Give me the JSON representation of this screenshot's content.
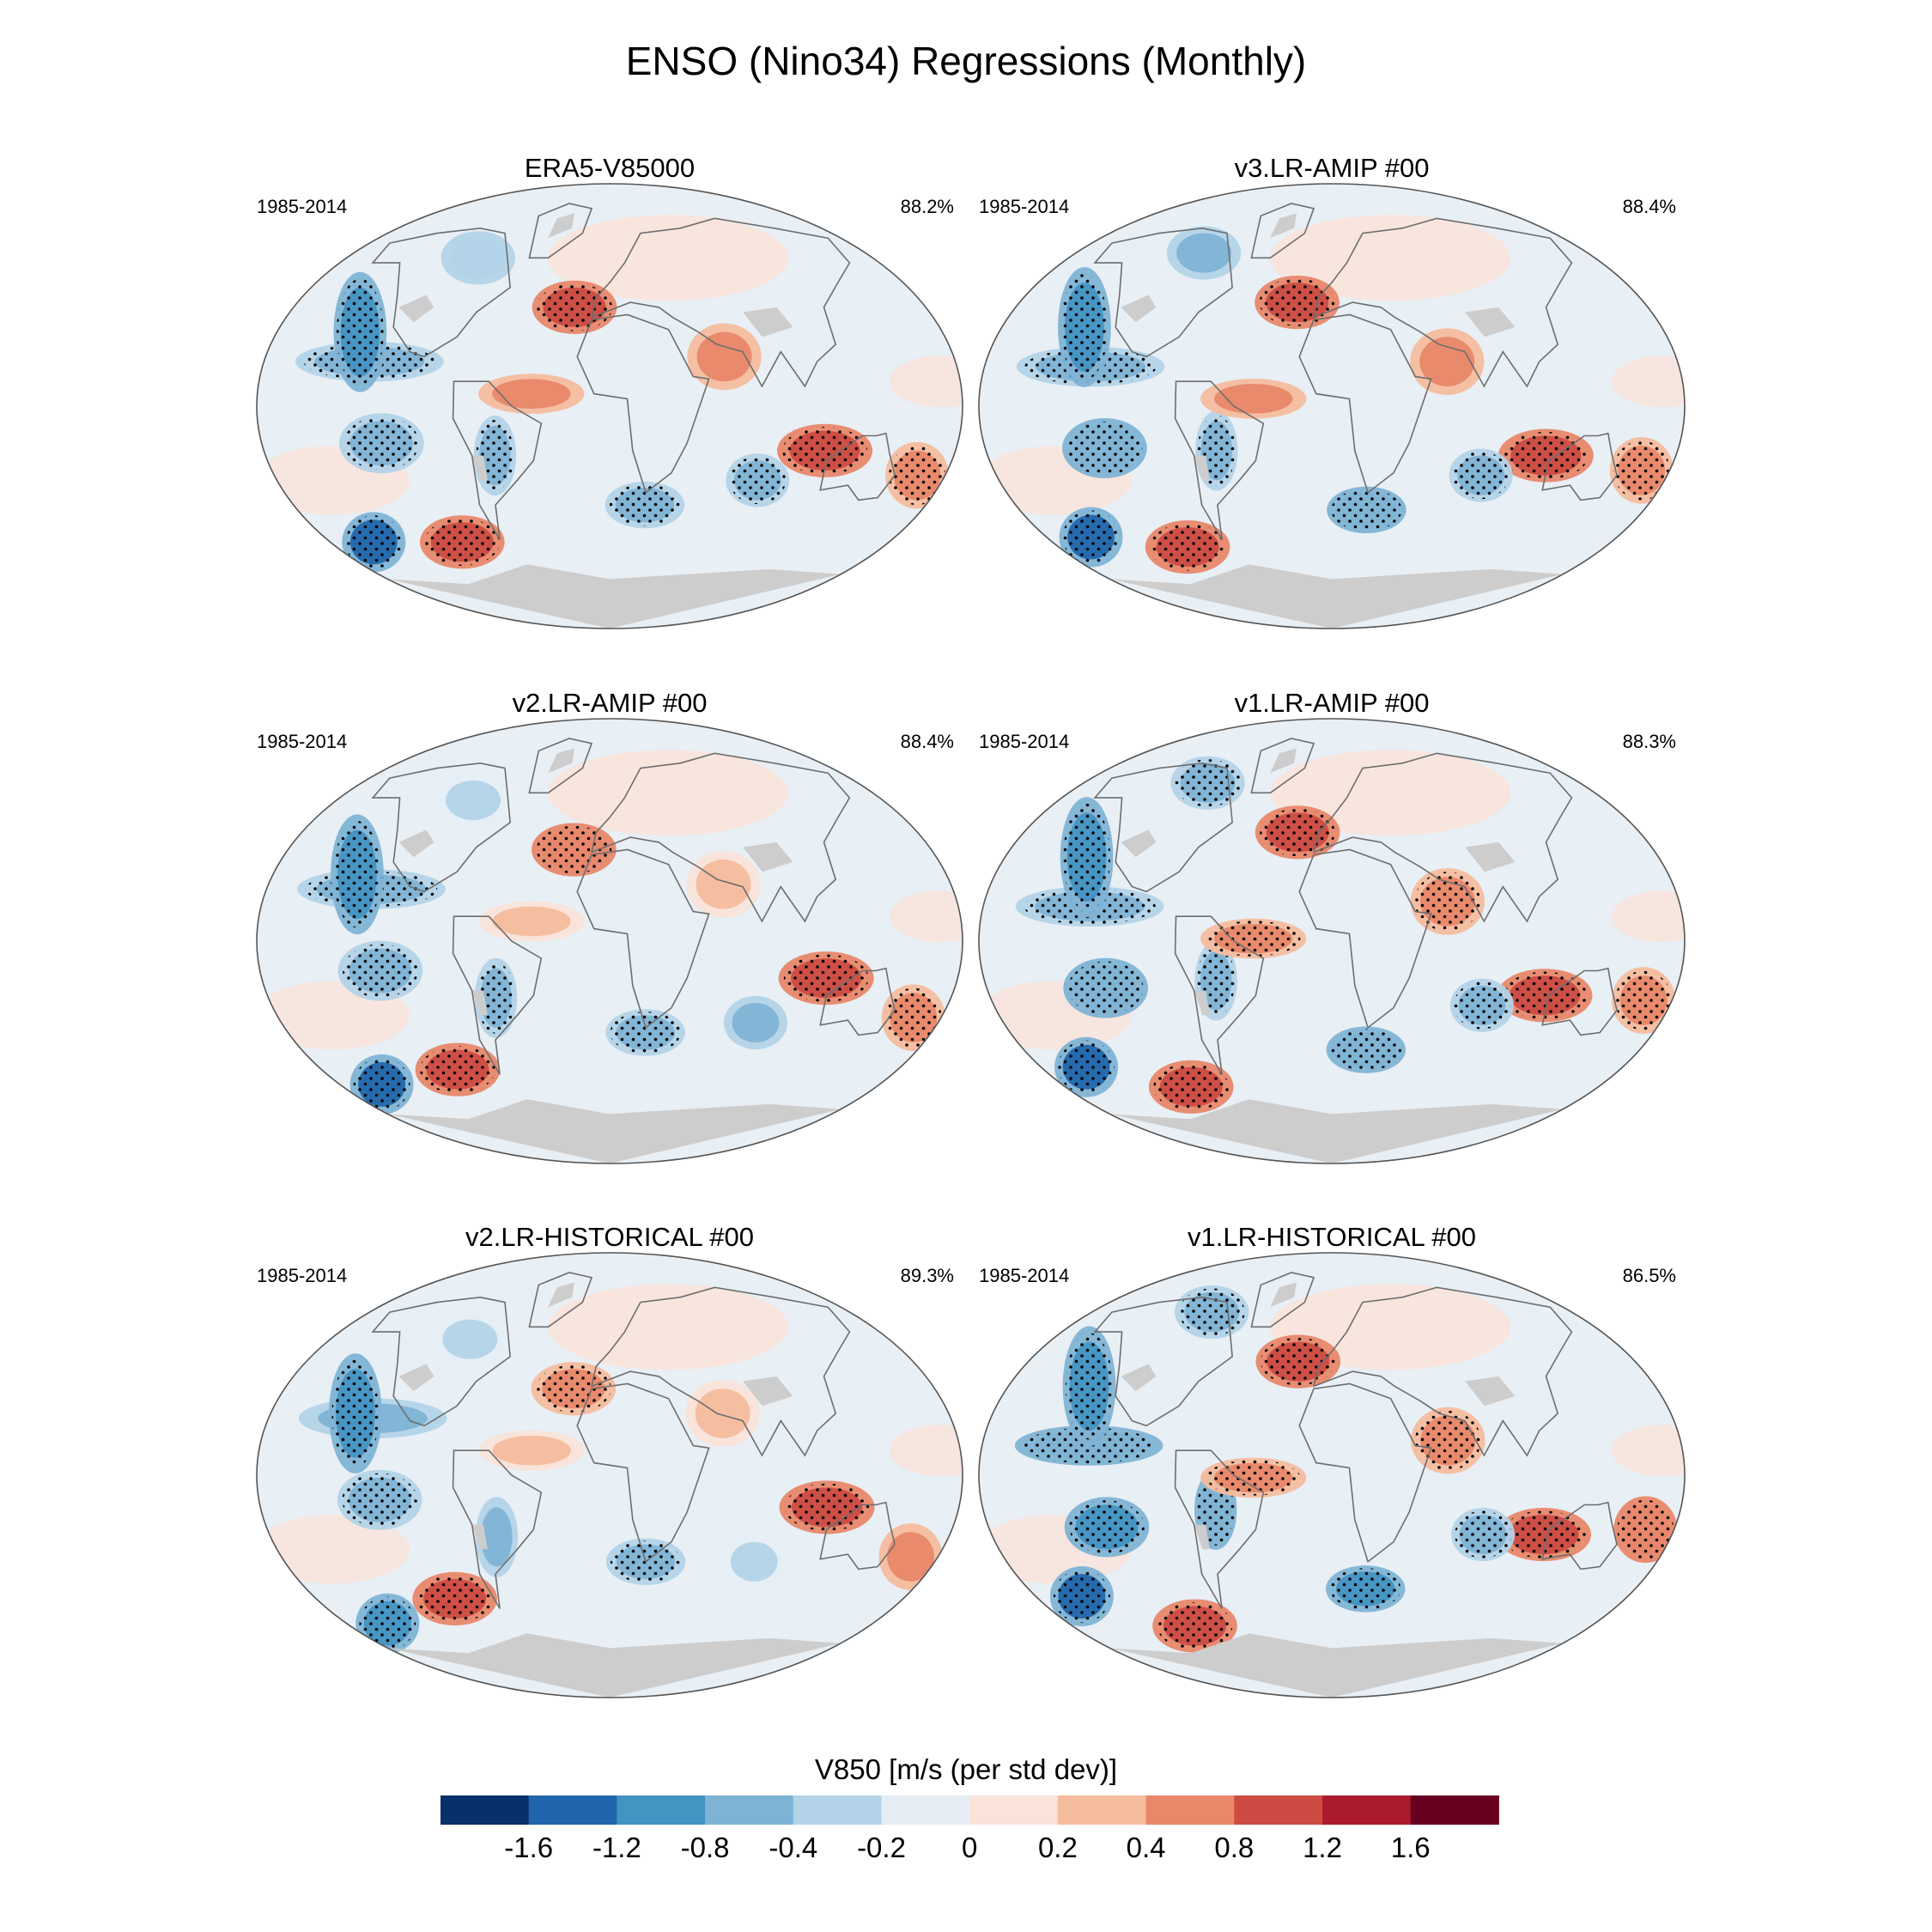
{
  "title": "ENSO (Nino34) Regressions (Monthly)",
  "chart_data": {
    "type": "heatmap",
    "variable": "V850",
    "units_label": "V850 [m/s (per std dev)]",
    "colorbar": {
      "tick_labels": [
        "-1.6",
        "-1.2",
        "-0.8",
        "-0.4",
        "-0.2",
        "0",
        "0.2",
        "0.4",
        "0.8",
        "1.2",
        "1.6"
      ],
      "levels": [
        -1.6,
        -1.2,
        -0.8,
        -0.4,
        -0.2,
        0,
        0.2,
        0.4,
        0.8,
        1.2,
        1.6
      ],
      "colors": [
        "#08306b",
        "#2166ac",
        "#4393c3",
        "#7fb3d5",
        "#b3d3e8",
        "#e6eef5",
        "#fae3d9",
        "#f5bc9e",
        "#e8876a",
        "#cc4c43",
        "#ab1b2d",
        "#67001f"
      ]
    },
    "panels": [
      {
        "name": "ERA5-V85000",
        "period": "1985-2014",
        "pct": "88.2%",
        "variant": "era5"
      },
      {
        "name": "v3.LR-AMIP  #00",
        "period": "1985-2014",
        "pct": "88.4%",
        "variant": "v3amip"
      },
      {
        "name": "v2.LR-AMIP  #00",
        "period": "1985-2014",
        "pct": "88.4%",
        "variant": "v2amip"
      },
      {
        "name": "v1.LR-AMIP  #00",
        "period": "1985-2014",
        "pct": "88.3%",
        "variant": "v1amip"
      },
      {
        "name": "v2.LR-HISTORICAL  #00",
        "period": "1985-2014",
        "pct": "89.3%",
        "variant": "v2hist"
      },
      {
        "name": "v1.LR-HISTORICAL  #00",
        "period": "1985-2014",
        "pct": "86.5%",
        "variant": "v1hist"
      }
    ],
    "anomalies": {
      "common": [
        {
          "lon": -20,
          "lat": 40,
          "v": 0.8,
          "sx": 16,
          "sy": 8
        },
        {
          "lon": -125,
          "lat": 18,
          "v": -0.6,
          "sx": 28,
          "sy": 6
        },
        {
          "lon": -135,
          "lat": 30,
          "v": -1.0,
          "sx": 10,
          "sy": 18
        },
        {
          "lon": 112,
          "lat": -18,
          "v": 1.0,
          "sx": 18,
          "sy": 8
        },
        {
          "lon": 165,
          "lat": -28,
          "v": 0.6,
          "sx": 12,
          "sy": 10
        },
        {
          "lon": -118,
          "lat": -15,
          "v": -0.7,
          "sx": 16,
          "sy": 9
        },
        {
          "lon": -152,
          "lat": -55,
          "v": -1.3,
          "sx": 12,
          "sy": 9
        },
        {
          "lon": -95,
          "lat": -55,
          "v": 1.0,
          "sx": 16,
          "sy": 8
        },
        {
          "lon": -60,
          "lat": -20,
          "v": -0.6,
          "sx": 8,
          "sy": 12
        },
        {
          "lon": 20,
          "lat": -40,
          "v": -0.7,
          "sx": 15,
          "sy": 7
        },
        {
          "lon": 80,
          "lat": -30,
          "v": -0.5,
          "sx": 12,
          "sy": 8
        },
        {
          "lon": 60,
          "lat": 20,
          "v": 0.4,
          "sx": 14,
          "sy": 10
        },
        {
          "lon": -90,
          "lat": 60,
          "v": -0.4,
          "sx": 14,
          "sy": 8
        },
        {
          "lon": -40,
          "lat": 5,
          "v": 0.4,
          "sx": 20,
          "sy": 6
        }
      ]
    }
  }
}
